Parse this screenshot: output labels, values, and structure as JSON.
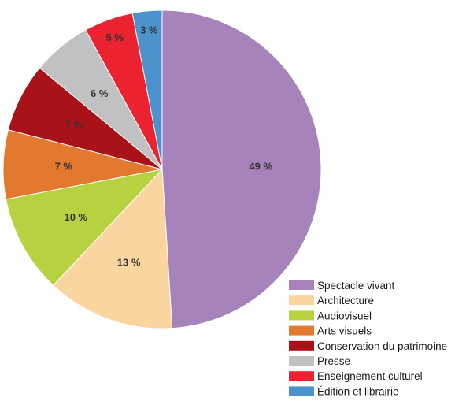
{
  "chart_data": {
    "type": "pie",
    "title": "",
    "legend_placement": "bottom-right",
    "slices": [
      {
        "name": "Spectacle vivant",
        "value": 49,
        "label": "49 %",
        "color": "#a683ba"
      },
      {
        "name": "Architecture",
        "value": 13,
        "label": "13 %",
        "color": "#fad59f"
      },
      {
        "name": "Audiovisuel",
        "value": 10,
        "label": "10 %",
        "color": "#b6d241"
      },
      {
        "name": "Arts visuels",
        "value": 7,
        "label": "7 %",
        "color": "#e3782f"
      },
      {
        "name": "Conservation du patrimoine",
        "value": 7,
        "label": "7 %",
        "color": "#aa1219"
      },
      {
        "name": "Presse",
        "value": 6,
        "label": "6 %",
        "color": "#c1c1c3"
      },
      {
        "name": "Enseignement culturel",
        "value": 5,
        "label": "5 %",
        "color": "#eb2330"
      },
      {
        "name": "Édition et librairie",
        "value": 3,
        "label": "3 %",
        "color": "#4c92cc"
      }
    ]
  }
}
